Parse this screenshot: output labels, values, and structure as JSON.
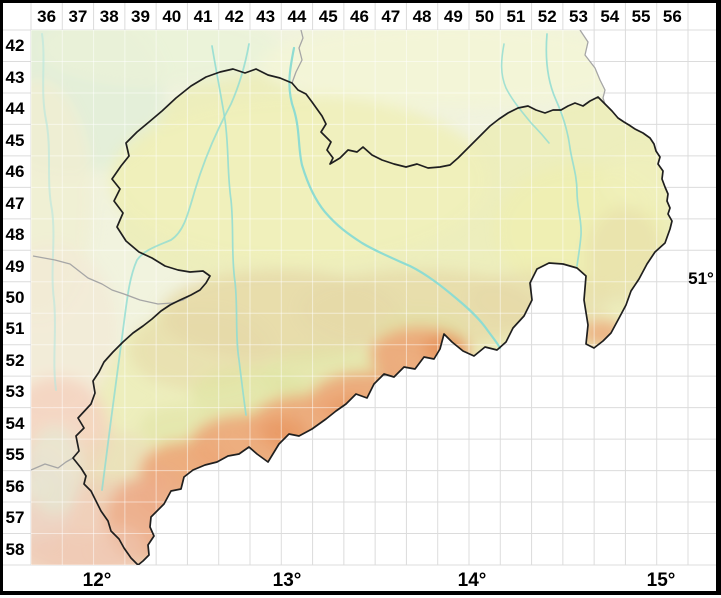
{
  "grid": {
    "column_labels": [
      "36",
      "37",
      "38",
      "39",
      "40",
      "41",
      "42",
      "43",
      "44",
      "45",
      "46",
      "47",
      "48",
      "49",
      "50",
      "51",
      "52",
      "53",
      "54",
      "55",
      "56"
    ],
    "row_labels": [
      "42",
      "43",
      "44",
      "45",
      "46",
      "47",
      "48",
      "49",
      "50",
      "51",
      "52",
      "53",
      "54",
      "55",
      "56",
      "57",
      "58"
    ]
  },
  "axis": {
    "longitude_labels": [
      "12°",
      "13°",
      "14°",
      "15°"
    ],
    "latitude_labels": [
      "51°"
    ]
  },
  "colors": {
    "germany_fill": "#f1f3de",
    "saxony_fill": "#edeebd",
    "lowland_green": "#e2eed8",
    "pale_green": "#eaf2d8",
    "north_strip": "#f3f5d6",
    "cream": "#f0efd2",
    "cream2": "#f2ead6",
    "pink1": "#f4d2c0",
    "pink2": "#f0c9b4",
    "pink3": "#edd6c6",
    "tan_soft": "#e9d8b8",
    "saxony_north": "#eff0ba",
    "saxony_east": "#eeeeb2",
    "midland_tan": "#e6d9a8",
    "slope_green": "#dde2a0",
    "mountain_orange": "#eca678",
    "high_orange": "#e6935c",
    "vogtland_orange": "#ecac88",
    "river": "#8edcd2",
    "river_faint": "#b5e6de",
    "state_border": "#a6a6a6",
    "saxony_border": "#1f1f1f",
    "grid_line": "#dcdcdc"
  }
}
